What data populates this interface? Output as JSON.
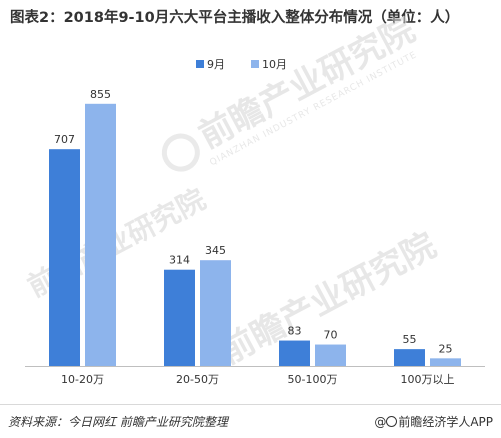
{
  "title": "图表2：2018年9-10月六大平台主播收入整体分布情况（单位：人）",
  "watermark": {
    "text": "前瞻产业研究院",
    "subtext": "QIANZHAN INDUSTRY RESEARCH INSTITUTE"
  },
  "chart_data": {
    "type": "bar",
    "title": "图表2：2018年9-10月六大平台主播收入整体分布情况（单位：人）",
    "categories": [
      "10-20万",
      "20-50万",
      "50-100万",
      "100万以上"
    ],
    "series": [
      {
        "name": "9月",
        "values": [
          707,
          314,
          83,
          55
        ],
        "color": "#3e7fd8"
      },
      {
        "name": "10月",
        "values": [
          855,
          345,
          70,
          25
        ],
        "color": "#8db4ec"
      }
    ],
    "ylim": [
      0,
      900
    ],
    "grid": false,
    "legend_position": "top-center",
    "xlabel": "",
    "ylabel": ""
  },
  "footer": {
    "source": "资料来源：今日网红 前瞻产业研究院整理",
    "brand": "前瞻经济学人APP"
  }
}
